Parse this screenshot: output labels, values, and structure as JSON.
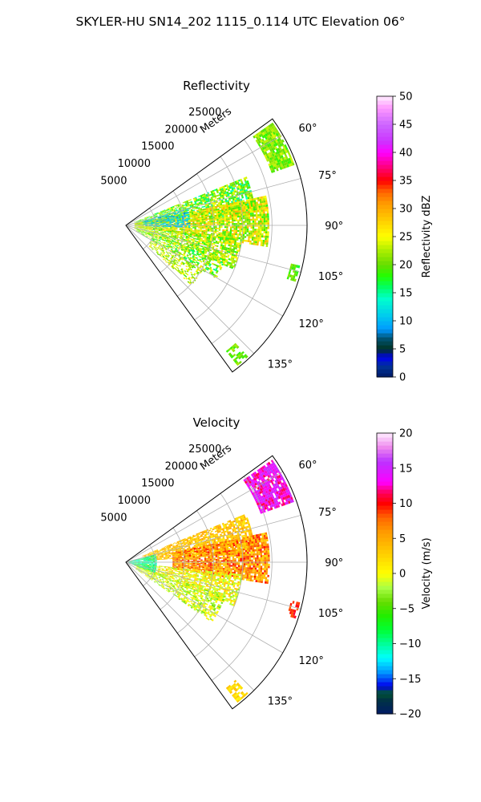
{
  "figure": {
    "suptitle": "SKYLER-HU  SN14_202  1115_0.114 UTC Elevation 06°"
  },
  "chart_data": [
    {
      "type": "heatmap",
      "subtype": "polar-sector",
      "title": "Reflectivity",
      "range_label": "Meters",
      "range_ticks": [
        "5000",
        "10000",
        "15000",
        "20000",
        "25000"
      ],
      "range_values": [
        5000,
        10000,
        15000,
        20000,
        25000
      ],
      "rlim": [
        0,
        31000
      ],
      "angle_ticks": [
        "60°",
        "75°",
        "90°",
        "105°",
        "120°",
        "135°"
      ],
      "angle_values": [
        60,
        75,
        90,
        105,
        120,
        135
      ],
      "theta_range_deg": [
        54,
        144
      ],
      "grid": true,
      "colorbar": {
        "label": "Reflectivity dBZ",
        "range": [
          0,
          50
        ],
        "ticks": [
          "0",
          "5",
          "10",
          "15",
          "20",
          "25",
          "30",
          "35",
          "40",
          "45",
          "50"
        ],
        "tick_values": [
          0,
          5,
          10,
          15,
          20,
          25,
          30,
          35,
          40,
          45,
          50
        ],
        "stops": [
          [
            0,
            "#001a66"
          ],
          [
            2,
            "#003399"
          ],
          [
            3.5,
            "#0000ee"
          ],
          [
            5,
            "#003322"
          ],
          [
            7,
            "#005577"
          ],
          [
            8.5,
            "#0099ff"
          ],
          [
            11,
            "#00ccee"
          ],
          [
            14,
            "#00ffcc"
          ],
          [
            16,
            "#00ff66"
          ],
          [
            18,
            "#22ff00"
          ],
          [
            20,
            "#66dd00"
          ],
          [
            22.5,
            "#aaee00"
          ],
          [
            25,
            "#ffff00"
          ],
          [
            28,
            "#ffcc00"
          ],
          [
            31,
            "#ff9900"
          ],
          [
            33,
            "#ff6600"
          ],
          [
            35,
            "#ff0000"
          ],
          [
            37,
            "#ff0066"
          ],
          [
            40,
            "#ff00ff"
          ],
          [
            42,
            "#cc33ff"
          ],
          [
            45,
            "#cc66ff"
          ],
          [
            48,
            "#ff99ff"
          ],
          [
            50,
            "#ffeeff"
          ]
        ]
      },
      "echo_regions": [
        {
          "theta": [
            55,
            70
          ],
          "r": [
            26500,
            30500
          ],
          "value": [
            18,
            24
          ],
          "density": 0.9
        },
        {
          "theta": [
            68,
            86
          ],
          "r": [
            1500,
            22000
          ],
          "value": [
            14,
            26
          ],
          "density": 0.75
        },
        {
          "theta": [
            78,
            98
          ],
          "r": [
            1500,
            24500
          ],
          "value": [
            18,
            30
          ],
          "density": 0.85
        },
        {
          "theta": [
            96,
            112
          ],
          "r": [
            1500,
            20000
          ],
          "value": [
            17,
            28
          ],
          "density": 0.7
        },
        {
          "theta": [
            108,
            120
          ],
          "r": [
            2000,
            18000
          ],
          "value": [
            15,
            27
          ],
          "density": 0.55
        },
        {
          "theta": [
            120,
            132
          ],
          "r": [
            5000,
            15000
          ],
          "value": [
            19,
            27
          ],
          "density": 0.5
        },
        {
          "theta": [
            75,
            92
          ],
          "r": [
            3000,
            11000
          ],
          "value": [
            8,
            14
          ],
          "density": 0.55
        },
        {
          "theta": [
            103,
            108
          ],
          "r": [
            29000,
            30500
          ],
          "value": [
            17,
            22
          ],
          "density": 0.6
        },
        {
          "theta": [
            137,
            141
          ],
          "r": [
            27500,
            30500
          ],
          "value": [
            18,
            23
          ],
          "density": 0.6
        }
      ]
    },
    {
      "type": "heatmap",
      "subtype": "polar-sector",
      "title": "Velocity",
      "range_label": "Meters",
      "range_ticks": [
        "5000",
        "10000",
        "15000",
        "20000",
        "25000"
      ],
      "range_values": [
        5000,
        10000,
        15000,
        20000,
        25000
      ],
      "rlim": [
        0,
        31000
      ],
      "angle_ticks": [
        "60°",
        "75°",
        "90°",
        "105°",
        "120°",
        "135°"
      ],
      "angle_values": [
        60,
        75,
        90,
        105,
        120,
        135
      ],
      "theta_range_deg": [
        54,
        144
      ],
      "grid": true,
      "colorbar": {
        "label": "Velocity (m/s)",
        "range": [
          -20,
          20
        ],
        "ticks": [
          "−20",
          "−15",
          "−10",
          "−5",
          "0",
          "5",
          "10",
          "15",
          "20"
        ],
        "tick_values": [
          -20,
          -15,
          -10,
          -5,
          0,
          5,
          10,
          15,
          20
        ],
        "stops": [
          [
            -20,
            "#001a66"
          ],
          [
            -18,
            "#003344"
          ],
          [
            -17,
            "#005533"
          ],
          [
            -16,
            "#0000ee"
          ],
          [
            -14,
            "#0099ff"
          ],
          [
            -12,
            "#00ffff"
          ],
          [
            -10,
            "#00ff99"
          ],
          [
            -8,
            "#00ff33"
          ],
          [
            -6,
            "#22ee00"
          ],
          [
            -4,
            "#66dd00"
          ],
          [
            -2,
            "#aaff44"
          ],
          [
            0,
            "#ffff00"
          ],
          [
            3,
            "#ffcc00"
          ],
          [
            6,
            "#ff9900"
          ],
          [
            8,
            "#ff6600"
          ],
          [
            10,
            "#ff0000"
          ],
          [
            11.5,
            "#ff0055"
          ],
          [
            13,
            "#ff00ff"
          ],
          [
            16,
            "#bb33ff"
          ],
          [
            18,
            "#ee88ee"
          ],
          [
            20,
            "#ffeeff"
          ]
        ]
      },
      "echo_regions": [
        {
          "theta": [
            55,
            70
          ],
          "r": [
            24500,
            30500
          ],
          "value": [
            11,
            16
          ],
          "density": 0.9
        },
        {
          "theta": [
            68,
            86
          ],
          "r": [
            3000,
            22000
          ],
          "value": [
            1,
            6
          ],
          "density": 0.75
        },
        {
          "theta": [
            78,
            98
          ],
          "r": [
            8000,
            24500
          ],
          "value": [
            2,
            10
          ],
          "density": 0.85
        },
        {
          "theta": [
            96,
            112
          ],
          "r": [
            1500,
            20000
          ],
          "value": [
            -3,
            4
          ],
          "density": 0.7
        },
        {
          "theta": [
            108,
            125
          ],
          "r": [
            2000,
            18000
          ],
          "value": [
            -4,
            2
          ],
          "density": 0.6
        },
        {
          "theta": [
            75,
            110
          ],
          "r": [
            500,
            5000
          ],
          "value": [
            -12,
            -8
          ],
          "density": 0.8
        },
        {
          "theta": [
            103,
            108
          ],
          "r": [
            29000,
            30500
          ],
          "value": [
            8,
            11
          ],
          "density": 0.6
        },
        {
          "theta": [
            137,
            141
          ],
          "r": [
            27500,
            30500
          ],
          "value": [
            0,
            4
          ],
          "density": 0.6
        }
      ]
    }
  ]
}
